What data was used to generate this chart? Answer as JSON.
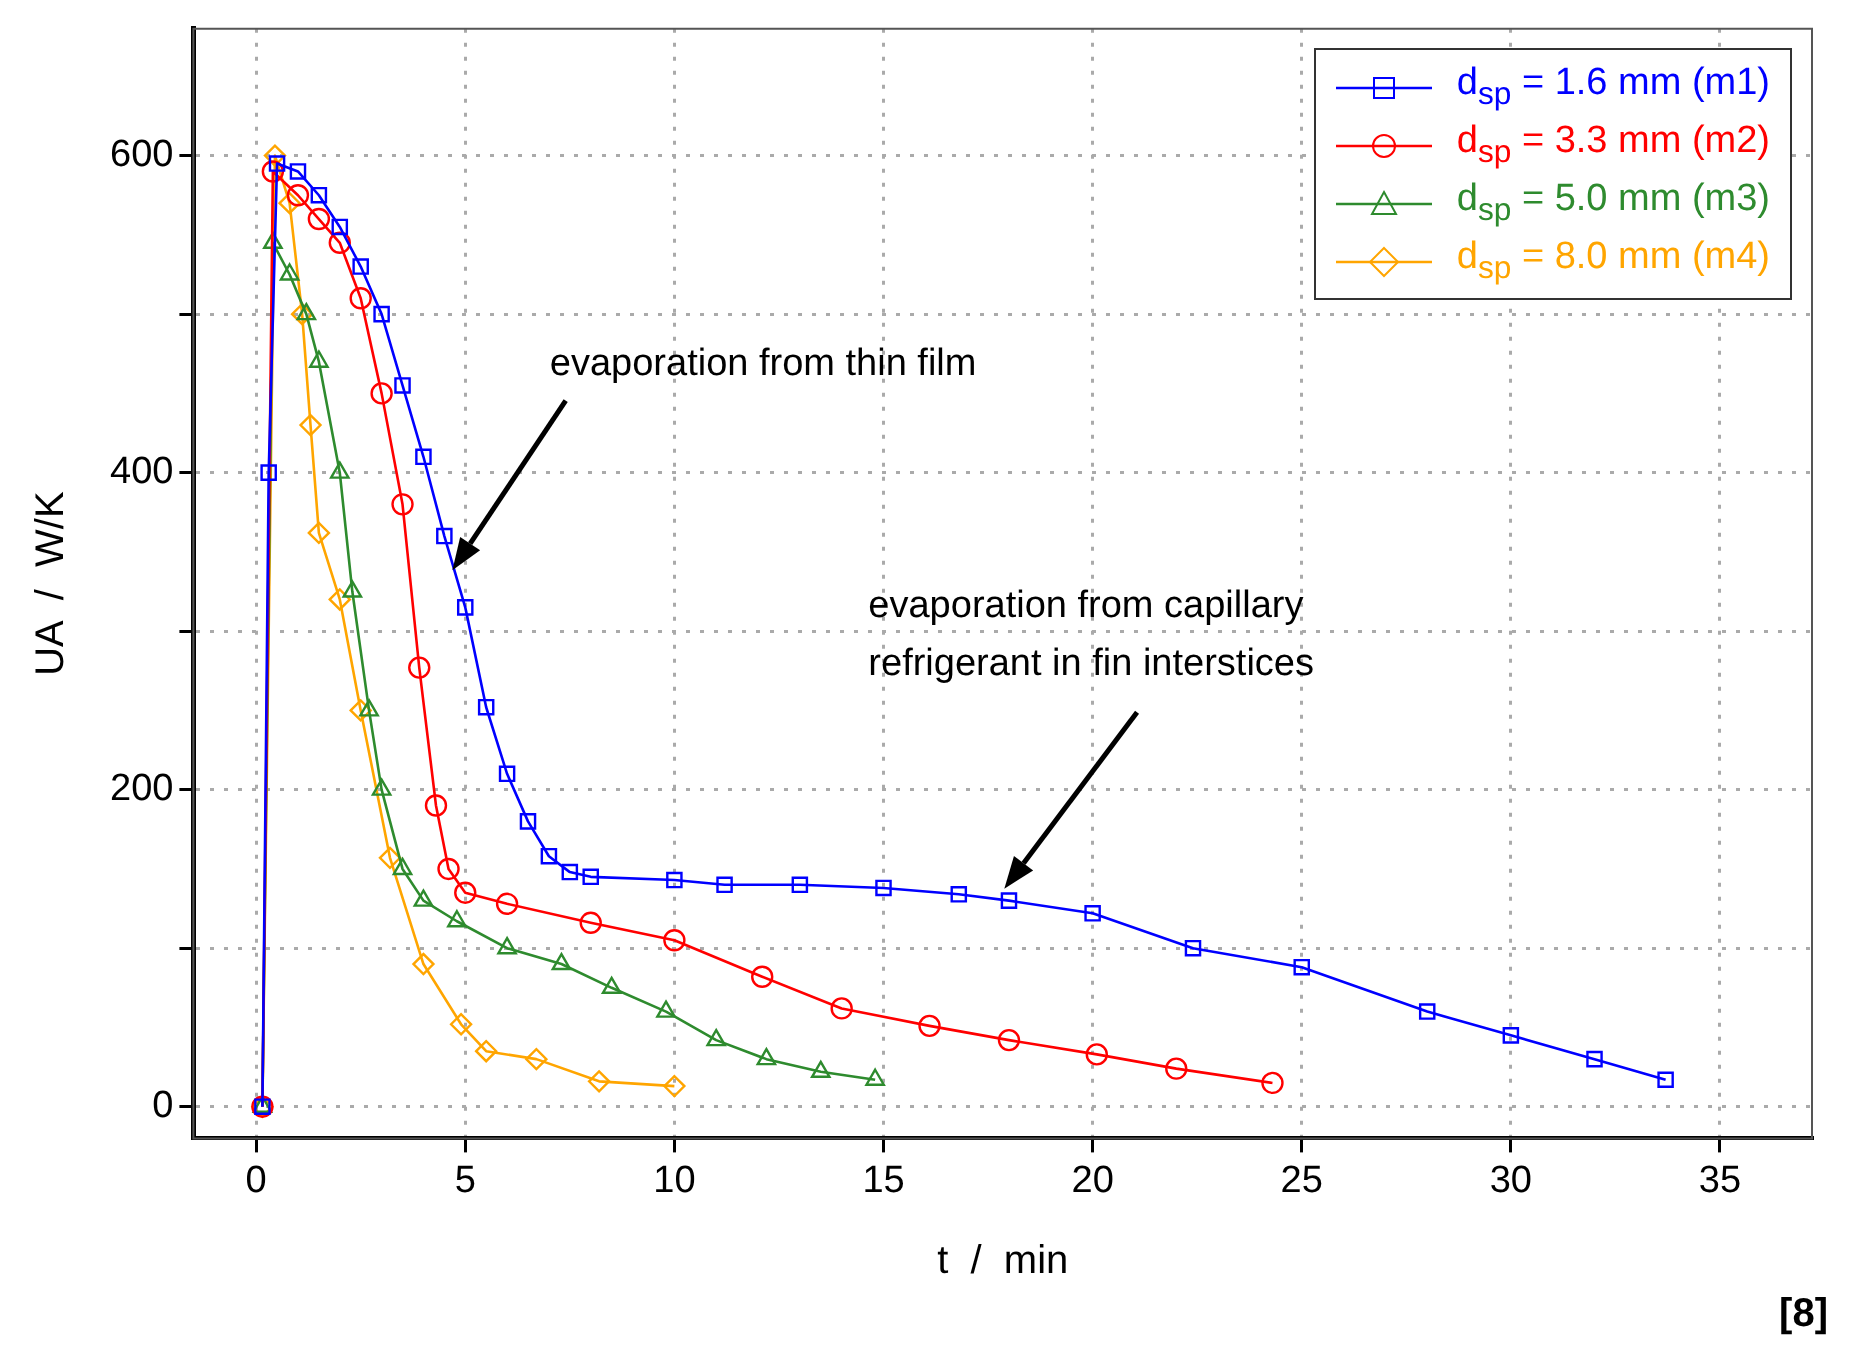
{
  "chart_data": {
    "type": "line",
    "xlabel": "t  /  min",
    "ylabel": "UA  /  W/K",
    "xlim": [
      -1.5,
      37.2
    ],
    "xticks": [
      0,
      5,
      10,
      15,
      20,
      25,
      30,
      35
    ],
    "ylim": [
      -20,
      680
    ],
    "yticks": [
      0,
      {
        "value": 100,
        "label": null
      },
      200,
      {
        "value": 300,
        "label": null
      },
      400,
      {
        "value": 500,
        "label": null
      },
      600
    ],
    "grid": true,
    "legend": "top right",
    "line_style": "solid",
    "series": [
      {
        "name": "d$_{sp}$ = 1.6 mm (m1)",
        "color": "#0000ff",
        "marker": "square",
        "x": [
          0.15,
          0.3,
          0.5,
          1,
          1.5,
          2,
          2.5,
          3,
          3.5,
          4,
          4.5,
          5,
          5.5,
          6,
          6.5,
          7,
          7.5,
          8,
          10,
          11.2,
          13,
          15,
          16.8,
          18,
          20,
          22.4,
          25,
          28,
          30,
          32,
          33.7
        ],
        "values": [
          0,
          400,
          595,
          590,
          575,
          555,
          530,
          500,
          455,
          410,
          360,
          315,
          252,
          210,
          180,
          158,
          148,
          145,
          143,
          140,
          140,
          138,
          134,
          130,
          122,
          100,
          88,
          60,
          45,
          30,
          17
        ]
      },
      {
        "name": "d$_{sp}$ = 3.3 mm (m2)",
        "color": "#ff0000",
        "marker": "circle",
        "x": [
          0.15,
          0.4,
          1,
          1.5,
          2,
          2.5,
          3,
          3.5,
          3.9,
          4.3,
          4.6,
          5,
          6,
          8,
          10,
          12.1,
          14,
          16.1,
          18,
          20.1,
          22,
          24.3
        ],
        "values": [
          0,
          590,
          575,
          560,
          545,
          510,
          450,
          380,
          277,
          190,
          150,
          135,
          128,
          116,
          105,
          82,
          62,
          51,
          42,
          33,
          24,
          15
        ]
      },
      {
        "name": "d$_{sp}$ = 5.0 mm (m3)",
        "color": "#2e8b2e",
        "marker": "triangle",
        "x": [
          0.15,
          0.4,
          0.8,
          1.2,
          1.5,
          2,
          2.3,
          2.7,
          3,
          3.5,
          4,
          4.8,
          6,
          7.3,
          8.5,
          9.8,
          11,
          12.2,
          13.5,
          14.8
        ],
        "values": [
          0,
          545,
          525,
          500,
          470,
          400,
          325,
          250,
          200,
          150,
          130,
          117,
          100,
          90,
          75,
          60,
          42,
          30,
          22,
          17
        ]
      },
      {
        "name": "d$_{sp}$ = 8.0 mm (m4)",
        "color": "#ffa500",
        "marker": "diamond",
        "x": [
          0.15,
          0.45,
          0.8,
          1.1,
          1.3,
          1.5,
          2,
          2.5,
          3.2,
          4,
          4.9,
          5.5,
          6.7,
          8.2,
          10
        ],
        "values": [
          0,
          600,
          570,
          500,
          430,
          362,
          320,
          250,
          157,
          90,
          52,
          35,
          30,
          16,
          13
        ]
      }
    ],
    "annotations": [
      "evaporation from thin film",
      "evaporation from capillary\nrefrigerant in fin interstices",
      "[8]"
    ]
  }
}
